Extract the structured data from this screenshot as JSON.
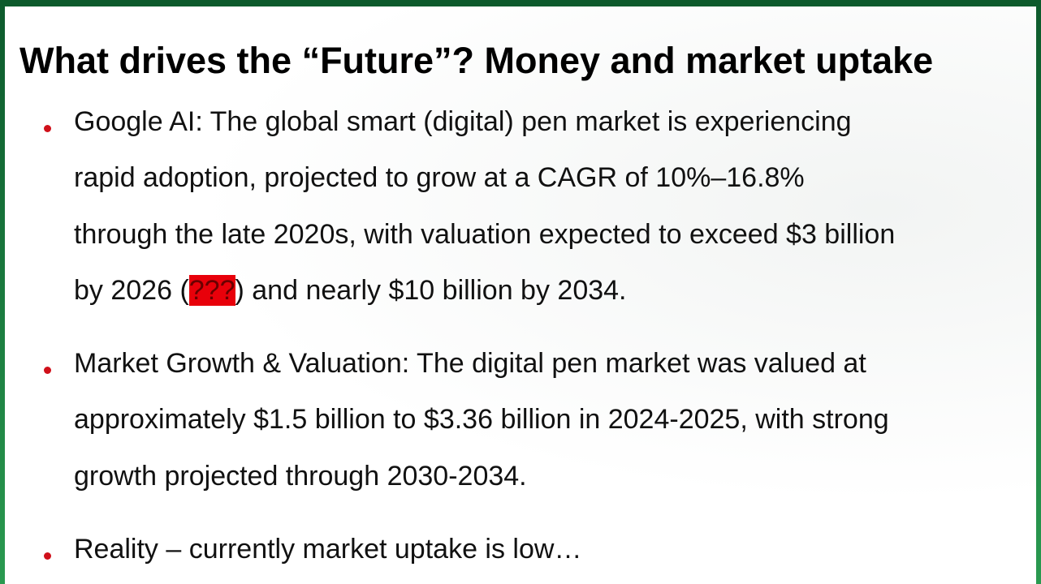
{
  "slide": {
    "title": "What drives the “Future”? Money and market uptake",
    "bullets": [
      {
        "lines": [
          "Google AI: The global smart (digital) pen market is experiencing",
          "rapid adoption, projected to grow at a CAGR of 10%–16.8%",
          "through the late 2020s, with valuation expected to exceed $3 billion"
        ],
        "last_line": {
          "before": "by 2026 (",
          "highlight": "???",
          "after": ") and nearly $10 billion by 2034."
        }
      },
      {
        "lines": [
          "Market Growth & Valuation: The digital pen market was valued at",
          "approximately $1.5 billion to $3.36 billion in 2024-2025, with strong",
          "growth projected through 2030-2034."
        ]
      },
      {
        "lines": [
          "Reality – currently market uptake is low…"
        ]
      }
    ]
  }
}
